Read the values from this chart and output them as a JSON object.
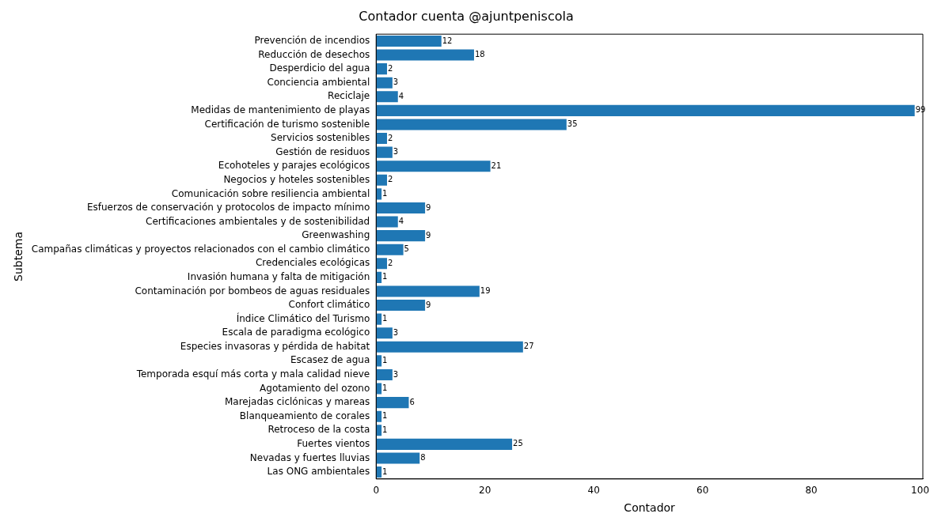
{
  "chart_data": {
    "type": "bar",
    "orientation": "horizontal",
    "title": "Contador cuenta @ajuntpeniscola",
    "xlabel": "Contador",
    "ylabel": "Subtema",
    "categories": [
      "Prevención de incendios",
      "Reducción de desechos",
      "Desperdicio del agua",
      "Conciencia ambiental",
      "Reciclaje",
      "Medidas de mantenimiento de playas",
      "Certificación de turismo sostenible",
      "Servicios sostenibles",
      "Gestión de residuos",
      "Ecohoteles y parajes ecológicos",
      "Negocios y hoteles sostenibles",
      "Comunicación sobre resiliencia ambiental",
      "Esfuerzos de conservación y protocolos de impacto mínimo",
      "Certificaciones ambientales y de sostenibilidad",
      "Greenwashing",
      "Campañas climáticas y proyectos relacionados con el cambio climático",
      "Credenciales ecológicas",
      "Invasión humana y falta de mitigación",
      "Contaminación por bombeos de aguas residuales",
      "Confort climático",
      "Índice Climático del Turismo",
      "Escala de paradigma ecológico",
      "Especies invasoras y pérdida de habitat",
      "Escasez de agua",
      "Temporada esquí más corta y mala calidad nieve",
      "Agotamiento del ozono",
      "Marejadas ciclónicas y mareas",
      "Blanqueamiento de corales",
      "Retroceso de la costa",
      "Fuertes vientos",
      "Nevadas y fuertes lluvias",
      "Las ONG ambientales"
    ],
    "values": [
      12,
      18,
      2,
      3,
      4,
      99,
      35,
      2,
      3,
      21,
      2,
      1,
      9,
      4,
      9,
      5,
      2,
      1,
      19,
      9,
      1,
      3,
      27,
      1,
      3,
      1,
      6,
      1,
      1,
      25,
      8,
      1
    ],
    "color": "#1f77b4",
    "xlim": [
      0,
      100.5
    ],
    "xticks": [
      0,
      20,
      40,
      60,
      80,
      100
    ],
    "data_labels": true,
    "grid": false,
    "legend": false
  }
}
